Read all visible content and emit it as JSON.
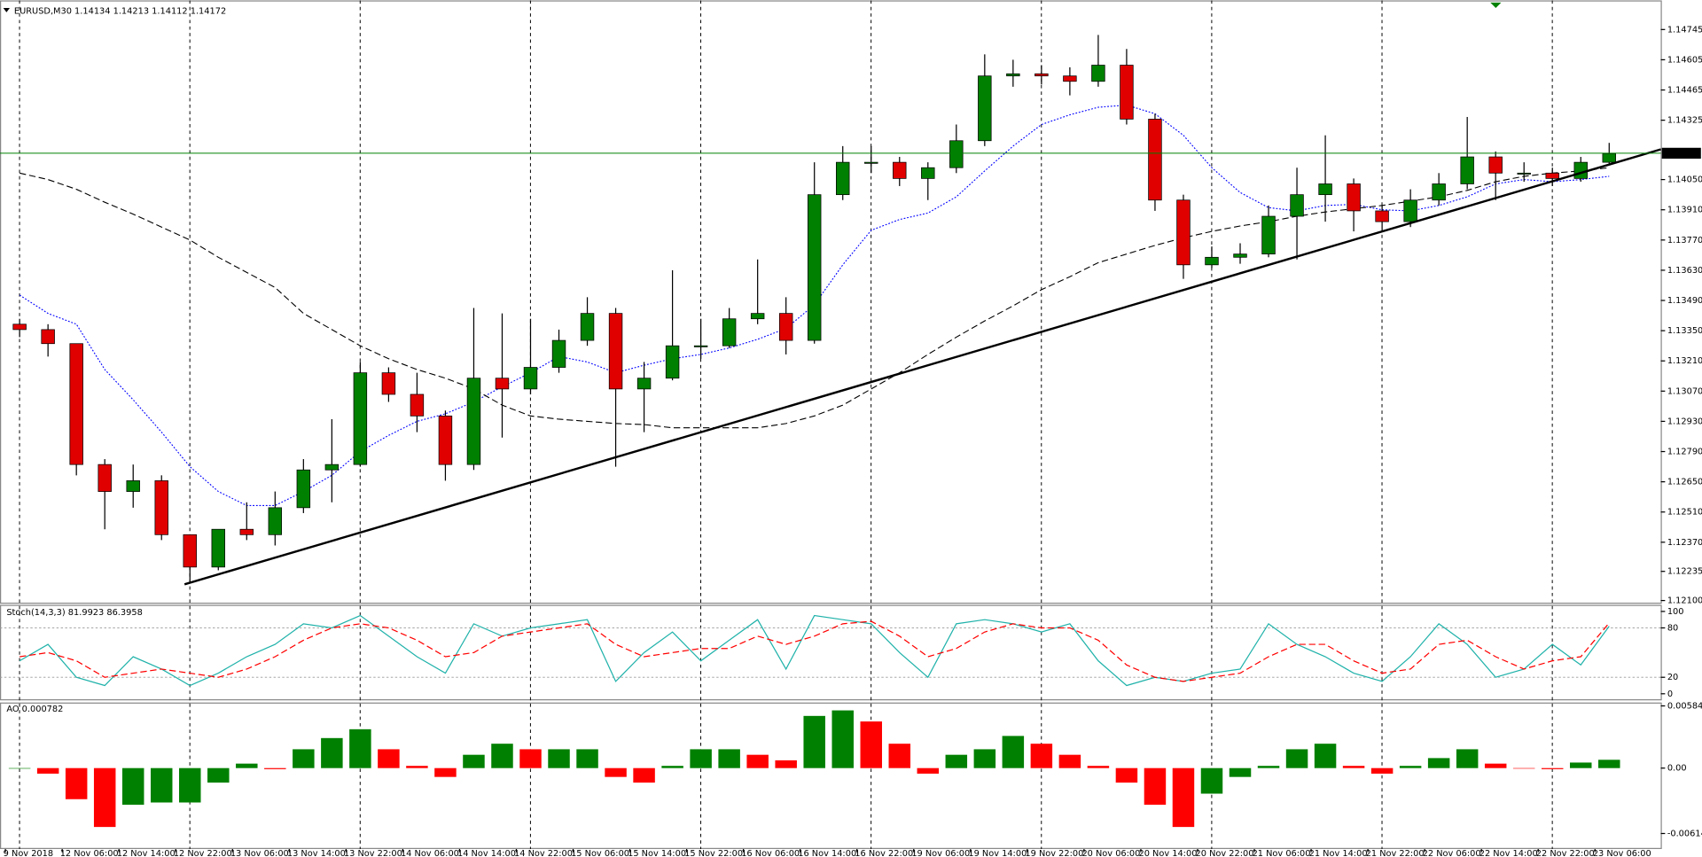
{
  "chart_data": [
    {
      "type": "candlestick",
      "title": "EURUSD,M30  1.14134 1.14213 1.14112 1.14172",
      "up_color": "#008000",
      "down_color": "#e00000",
      "open": [
        1.1338,
        1.13355,
        1.1329,
        1.1273,
        1.12605,
        1.12655,
        1.12405,
        1.12255,
        1.1243,
        1.12405,
        1.1253,
        1.12705,
        1.1273,
        1.13155,
        1.13055,
        1.12955,
        1.1273,
        1.1313,
        1.1308,
        1.1318,
        1.13305,
        1.1343,
        1.1308,
        1.1313,
        1.1328,
        1.1328,
        1.13405,
        1.1343,
        1.13305,
        1.1398,
        1.1413,
        1.1413,
        1.14055,
        1.14105,
        1.1423,
        1.1453,
        1.1454,
        1.1453,
        1.14505,
        1.1458,
        1.1433,
        1.13955,
        1.13655,
        1.1369,
        1.13705,
        1.1388,
        1.1398,
        1.1403,
        1.13905,
        1.13855,
        1.13955,
        1.1403,
        1.14155,
        1.1408,
        1.1408,
        1.14055,
        1.1413
      ],
      "high": [
        1.13405,
        1.1338,
        1.1329,
        1.12755,
        1.1273,
        1.1268,
        1.12405,
        1.1243,
        1.12555,
        1.12605,
        1.12755,
        1.1294,
        1.13205,
        1.1318,
        1.13155,
        1.1298,
        1.13455,
        1.1343,
        1.13405,
        1.13355,
        1.13505,
        1.13455,
        1.13205,
        1.1363,
        1.13405,
        1.13455,
        1.1368,
        1.13505,
        1.1413,
        1.14205,
        1.14205,
        1.14155,
        1.1413,
        1.14305,
        1.1463,
        1.14605,
        1.1458,
        1.1457,
        1.1472,
        1.14655,
        1.14355,
        1.1398,
        1.1374,
        1.13755,
        1.1393,
        1.14105,
        1.14255,
        1.14055,
        1.1393,
        1.14005,
        1.1408,
        1.1434,
        1.1418,
        1.1413,
        1.14105,
        1.14155,
        1.1422
      ],
      "low": [
        1.1332,
        1.1323,
        1.1268,
        1.1243,
        1.1253,
        1.1238,
        1.1218,
        1.1224,
        1.1238,
        1.12355,
        1.12505,
        1.12555,
        1.1272,
        1.1302,
        1.1288,
        1.12655,
        1.12705,
        1.12855,
        1.13055,
        1.13155,
        1.1328,
        1.1272,
        1.1288,
        1.1312,
        1.1322,
        1.1327,
        1.1338,
        1.1324,
        1.1329,
        1.13955,
        1.1408,
        1.1402,
        1.13955,
        1.1408,
        1.14205,
        1.1448,
        1.1449,
        1.1444,
        1.1448,
        1.14305,
        1.13905,
        1.1359,
        1.1364,
        1.1366,
        1.1369,
        1.1368,
        1.13855,
        1.1381,
        1.1381,
        1.1383,
        1.1393,
        1.14005,
        1.13955,
        1.1404,
        1.1402,
        1.1404,
        1.1412
      ],
      "close": [
        1.13355,
        1.1329,
        1.1273,
        1.12605,
        1.12655,
        1.12405,
        1.12255,
        1.1243,
        1.12405,
        1.1253,
        1.12705,
        1.1273,
        1.13155,
        1.13055,
        1.12955,
        1.1273,
        1.1313,
        1.1308,
        1.1318,
        1.13305,
        1.1343,
        1.1308,
        1.1313,
        1.1328,
        1.1328,
        1.13405,
        1.1343,
        1.13305,
        1.1398,
        1.1413,
        1.1413,
        1.14055,
        1.14105,
        1.1423,
        1.1453,
        1.1454,
        1.1453,
        1.14505,
        1.1458,
        1.1433,
        1.13955,
        1.13655,
        1.1369,
        1.13705,
        1.1388,
        1.1398,
        1.1403,
        1.13905,
        1.13855,
        1.13955,
        1.1403,
        1.14155,
        1.1408,
        1.1408,
        1.14055,
        1.1413,
        1.1417
      ],
      "overlays": [
        {
          "color": "#0000ff",
          "style": "dotted",
          "values": [
            1.13515,
            1.1343,
            1.1338,
            1.1317,
            1.1303,
            1.1288,
            1.1272,
            1.12605,
            1.1254,
            1.1254,
            1.12605,
            1.1268,
            1.1279,
            1.12865,
            1.1293,
            1.12965,
            1.1302,
            1.1309,
            1.13155,
            1.1323,
            1.13205,
            1.13155,
            1.1319,
            1.1322,
            1.1324,
            1.1327,
            1.1331,
            1.1336,
            1.1347,
            1.13655,
            1.13815,
            1.13865,
            1.13895,
            1.1397,
            1.1409,
            1.14205,
            1.14305,
            1.1435,
            1.14385,
            1.14395,
            1.14355,
            1.14255,
            1.14105,
            1.1399,
            1.1392,
            1.13905,
            1.1393,
            1.13935,
            1.1391,
            1.13905,
            1.1393,
            1.1397,
            1.1403,
            1.1405,
            1.1404,
            1.1405,
            1.14065
          ]
        },
        {
          "color": "#000000",
          "style": "dashed",
          "values": [
            1.1408,
            1.1405,
            1.14005,
            1.13945,
            1.1389,
            1.1383,
            1.1377,
            1.1369,
            1.1362,
            1.1355,
            1.1343,
            1.13355,
            1.1328,
            1.1322,
            1.1317,
            1.1313,
            1.1308,
            1.13005,
            1.12955,
            1.1294,
            1.1293,
            1.1292,
            1.12915,
            1.129,
            1.129,
            1.129,
            1.129,
            1.1292,
            1.12955,
            1.13005,
            1.1308,
            1.13155,
            1.1324,
            1.1332,
            1.13395,
            1.13465,
            1.1354,
            1.136,
            1.13665,
            1.13705,
            1.13745,
            1.1378,
            1.1381,
            1.13835,
            1.13855,
            1.1388,
            1.139,
            1.13915,
            1.1393,
            1.1395,
            1.1397,
            1.14,
            1.1404,
            1.14065,
            1.1408,
            1.1409,
            1.14105
          ]
        }
      ],
      "trendline": {
        "x": [
          5.81,
          57.82
        ],
        "values": [
          1.12175,
          1.1419
        ]
      },
      "last_price": {
        "value": 1.14172,
        "label": "1.14172"
      },
      "ylim": [
        1.1209,
        1.1488
      ],
      "yticks": [
        {
          "value": 1.121,
          "label": "1.12100"
        },
        1.12235,
        {
          "value": 1.1237,
          "label": "1.12370"
        },
        {
          "value": 1.1251,
          "label": "1.12510"
        },
        {
          "value": 1.1265,
          "label": "1.12650"
        },
        {
          "value": 1.1279,
          "label": "1.12790"
        },
        {
          "value": 1.1293,
          "label": "1.12930"
        },
        {
          "value": 1.1307,
          "label": "1.13070"
        },
        {
          "value": 1.1321,
          "label": "1.13210"
        },
        {
          "value": 1.1335,
          "label": "1.13350"
        },
        {
          "value": 1.1349,
          "label": "1.13490"
        },
        {
          "value": 1.1363,
          "label": "1.13630"
        },
        {
          "value": 1.1377,
          "label": "1.13770"
        },
        {
          "value": 1.1391,
          "label": "1.13910"
        },
        {
          "value": 1.1405,
          "label": "1.14050"
        },
        1.14325,
        1.14465,
        1.14605,
        1.14745
      ],
      "time_labels": [
        "9 Nov 2018",
        "12 Nov 06:00",
        "12 Nov 14:00",
        "12 Nov 22:00",
        "13 Nov 06:00",
        "13 Nov 14:00",
        "13 Nov 22:00",
        "14 Nov 06:00",
        "14 Nov 14:00",
        "14 Nov 22:00",
        "15 Nov 06:00",
        "15 Nov 14:00",
        "15 Nov 22:00",
        "16 Nov 06:00",
        "16 Nov 14:00",
        "16 Nov 22:00",
        "19 Nov 06:00",
        "19 Nov 14:00",
        "19 Nov 22:00",
        "20 Nov 06:00",
        "20 Nov 14:00",
        "20 Nov 22:00",
        "21 Nov 06:00",
        "21 Nov 14:00",
        "21 Nov 22:00",
        "22 Nov 06:00",
        "22 Nov 14:00",
        "22 Nov 22:00",
        "23 Nov 06:00"
      ]
    },
    {
      "type": "line",
      "title": "Stoch(14,3,3) 81.9923 86.3958",
      "series": [
        {
          "color": "#20b2aa",
          "style": "solid",
          "values": [
            40,
            60,
            20,
            10,
            45,
            30,
            10,
            25,
            45,
            60,
            85,
            80,
            95,
            70,
            45,
            25,
            85,
            70,
            80,
            85,
            90,
            15,
            50,
            75,
            40,
            65,
            90,
            30,
            95,
            90,
            85,
            50,
            20,
            85,
            90,
            85,
            75,
            85,
            40,
            10,
            20,
            15,
            25,
            30,
            85,
            60,
            45,
            25,
            15,
            45,
            85,
            60,
            20,
            30,
            60,
            35,
            82
          ]
        },
        {
          "color": "#ff0000",
          "style": "dashed",
          "values": [
            45,
            50,
            40,
            20,
            25,
            30,
            25,
            20,
            30,
            45,
            65,
            80,
            85,
            80,
            65,
            45,
            50,
            70,
            75,
            80,
            85,
            60,
            45,
            50,
            55,
            55,
            70,
            60,
            70,
            85,
            88,
            70,
            45,
            55,
            75,
            85,
            80,
            80,
            65,
            35,
            20,
            15,
            20,
            25,
            45,
            60,
            60,
            40,
            25,
            30,
            60,
            65,
            45,
            30,
            40,
            45,
            86
          ]
        }
      ],
      "levels": [
        20,
        80
      ],
      "ylim": [
        -8,
        108
      ],
      "yticks": [
        0,
        20,
        80,
        100
      ]
    },
    {
      "type": "bar",
      "title": "AO 0.000782",
      "up_color": "#008000",
      "down_color": "#ff0000",
      "values": [
        0,
        -0.00052,
        -0.00292,
        -0.00553,
        -0.00344,
        -0.00323,
        -0.00323,
        -0.00136,
        0.00042,
        -0.0001,
        0.00177,
        0.00282,
        0.00365,
        0.00177,
        0.00021,
        -0.00083,
        0.00125,
        0.00229,
        0.00177,
        0.00177,
        0.00177,
        -0.00083,
        -0.00136,
        0.00021,
        0.00177,
        0.00177,
        0.00125,
        0.00073,
        0.0049,
        0.00542,
        0.00438,
        0.00229,
        -0.00052,
        0.00125,
        0.00177,
        0.00302,
        0.00229,
        0.00125,
        0.00021,
        -0.00136,
        -0.00344,
        -0.00553,
        -0.0024,
        -0.00083,
        0.00021,
        0.00177,
        0.00229,
        0.00021,
        -0.00052,
        0.00021,
        0.00094,
        0.00177,
        0.00042,
        0,
        -0.0001,
        0.00052,
        0.00078
      ],
      "ylim": [
        -0.0076,
        0.00616
      ],
      "yticks": [
        -0.006143,
        {
          "value": 0,
          "label": "0.00"
        },
        0.005842
      ]
    }
  ]
}
